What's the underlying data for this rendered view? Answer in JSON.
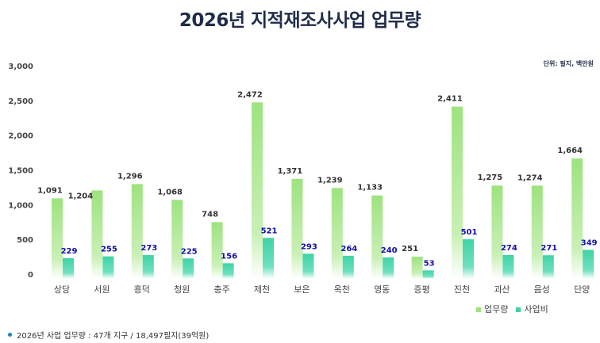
{
  "title": "2026년 지적재조사사업 업무량",
  "unit_label": "단위: 필지, 백만원",
  "footnote": "2026년 사업 업무량 : 47개 지구 / 18,497필지(39억원)",
  "colors": {
    "series1": "#9de37e",
    "series2": "#3fd3a6",
    "label1": "#333333",
    "label2": "#1010b0"
  },
  "chart_data": {
    "type": "bar",
    "title": "2026년 지적재조사사업 업무량",
    "xlabel": "",
    "ylabel": "",
    "ylim": [
      0,
      3000
    ],
    "yticks": [
      "0",
      "500",
      "1,000",
      "1,500",
      "2,000",
      "2,500",
      "3,000"
    ],
    "grid": false,
    "legend_position": "bottom-right",
    "categories": [
      "상당",
      "서원",
      "흥덕",
      "청원",
      "충주",
      "제천",
      "보은",
      "옥천",
      "영동",
      "증평",
      "진천",
      "괴산",
      "음성",
      "단양"
    ],
    "series": [
      {
        "name": "업무량",
        "values": [
          1091,
          1204,
          1296,
          1068,
          748,
          2472,
          1371,
          1239,
          1133,
          251,
          2411,
          1275,
          1274,
          1664
        ]
      },
      {
        "name": "사업비",
        "values": [
          229,
          255,
          273,
          225,
          156,
          521,
          293,
          264,
          240,
          53,
          501,
          274,
          271,
          349
        ]
      }
    ]
  }
}
